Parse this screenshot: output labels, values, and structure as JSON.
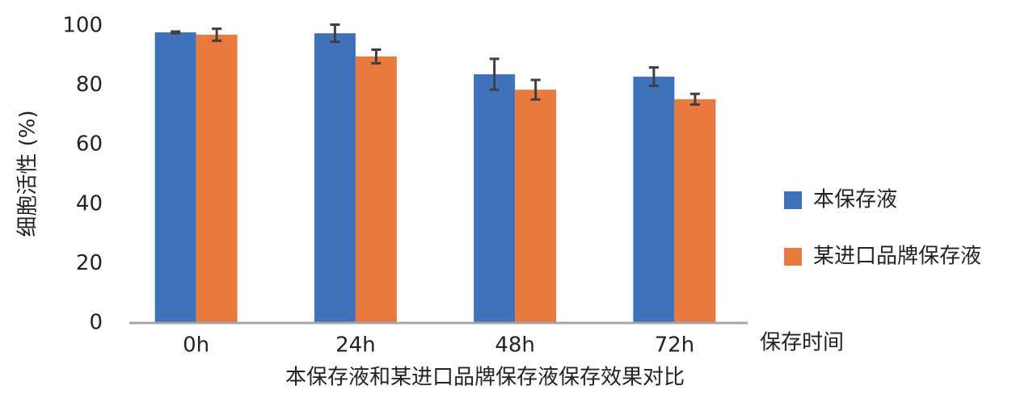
{
  "chart_data": {
    "type": "bar",
    "title": "本保存液和某进口品牌保存液保存效果对比",
    "x_label": "保存时间",
    "y_label": "细胞活性 (%)",
    "categories": [
      "0h",
      "24h",
      "48h",
      "72h"
    ],
    "series": [
      {
        "name": "本保存液",
        "color": "#3f72ba",
        "values": [
          97.8,
          97.5,
          83.7,
          82.9
        ],
        "errors": [
          0.3,
          2.9,
          5.2,
          3.1
        ]
      },
      {
        "name": "某进口品牌保存液",
        "color": "#e87a3f",
        "values": [
          97,
          89.7,
          78.5,
          75.3
        ],
        "errors": [
          2,
          2.3,
          3.3,
          1.8
        ]
      }
    ],
    "ylim": [
      0,
      100
    ],
    "yticks": [
      0,
      20,
      40,
      60,
      80,
      100
    ],
    "grid": false,
    "legend": "right"
  }
}
